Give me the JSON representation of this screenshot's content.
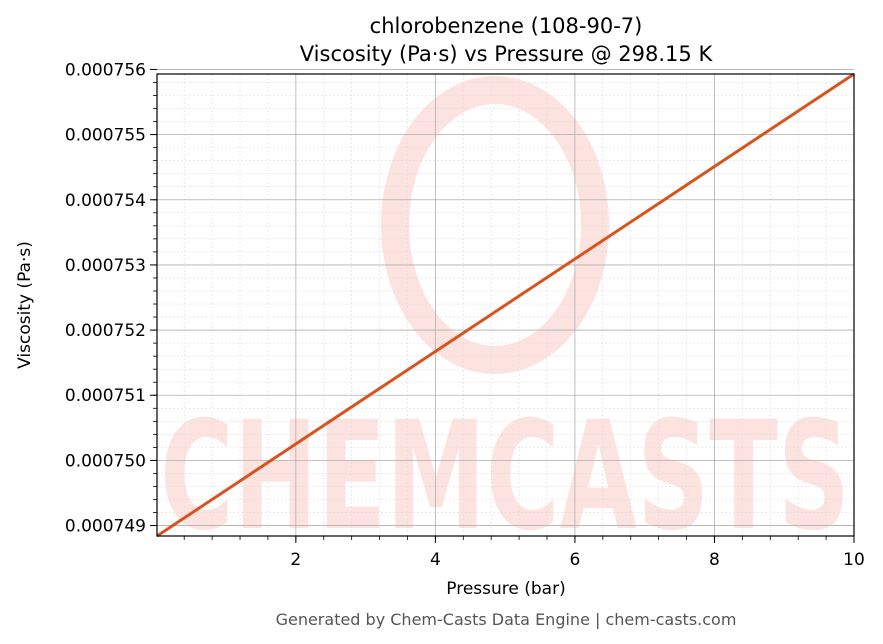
{
  "chart_data": {
    "type": "line",
    "title_line1": "chlorobenzene (108-90-7)",
    "title_line2": "Viscosity (Pa·s) vs Pressure @ 298.15 K",
    "xlabel": "Pressure (bar)",
    "ylabel": "Viscosity (Pa·s)",
    "xlim": [
      0.01,
      10
    ],
    "ylim": [
      0.00074884,
      0.00075593
    ],
    "x_ticks": [
      2,
      4,
      6,
      8,
      10
    ],
    "x_tick_labels": [
      "2",
      "4",
      "6",
      "8",
      "10"
    ],
    "y_ticks": [
      0.000749,
      0.00075,
      0.000751,
      0.000752,
      0.000753,
      0.000754,
      0.000755,
      0.000756
    ],
    "y_tick_labels": [
      "0.000749",
      "0.000750",
      "0.000751",
      "0.000752",
      "0.000753",
      "0.000754",
      "0.000755",
      "0.000756"
    ],
    "grid": true,
    "series": [
      {
        "color": "#d9531e",
        "x": [
          0.01,
          10
        ],
        "y": [
          0.00074884,
          0.00075593
        ]
      }
    ]
  },
  "watermark": {
    "text": "CHEMCASTS",
    "color": "#fde3df"
  },
  "footer": "Generated by Chem-Casts Data Engine | chem-casts.com"
}
